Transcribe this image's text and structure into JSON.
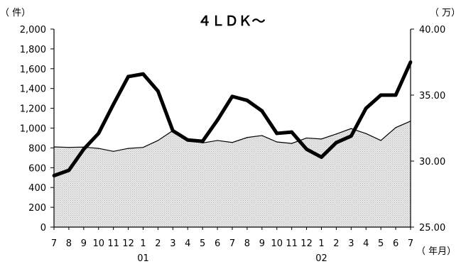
{
  "chart_data": {
    "type": "line",
    "title": "４ＬＤＫ～",
    "y_left_unit": "（ 件）",
    "y_right_unit": "（ 万）",
    "x_unit": "（ 年月）",
    "x_labels": [
      "7",
      "8",
      "9",
      "10",
      "11",
      "12",
      "1",
      "2",
      "3",
      "4",
      "5",
      "6",
      "7",
      "8",
      "9",
      "10",
      "11",
      "12",
      "1",
      "2",
      "3",
      "4",
      "5",
      "6",
      "7"
    ],
    "year_labels": [
      {
        "index": 6,
        "label": "01"
      },
      {
        "index": 18,
        "label": "02"
      }
    ],
    "y_left_ticks": [
      "0",
      "200",
      "400",
      "600",
      "800",
      "1,000",
      "1,200",
      "1,400",
      "1,600",
      "1,800",
      "2,000"
    ],
    "y_right_ticks": [
      "25.00",
      "30.00",
      "35.00",
      "40.00"
    ],
    "ylim_left": [
      0,
      2000
    ],
    "ylim_right": [
      25,
      40
    ],
    "series": [
      {
        "style": "area",
        "axis": "left",
        "fill": "#dcdcdc",
        "stroke": "#000000",
        "values": [
          810,
          805,
          808,
          795,
          765,
          795,
          805,
          875,
          975,
          885,
          850,
          875,
          855,
          905,
          925,
          860,
          845,
          900,
          890,
          940,
          995,
          945,
          875,
          1005,
          1070
        ]
      },
      {
        "style": "thick-line",
        "axis": "right",
        "stroke": "#000000",
        "values": [
          28.9,
          29.3,
          30.9,
          32.1,
          34.3,
          36.4,
          36.6,
          35.3,
          32.3,
          31.6,
          31.5,
          33.1,
          34.9,
          34.6,
          33.8,
          32.1,
          32.2,
          30.9,
          30.3,
          31.4,
          31.9,
          34.0,
          35.0,
          35.0,
          37.5
        ]
      }
    ]
  }
}
